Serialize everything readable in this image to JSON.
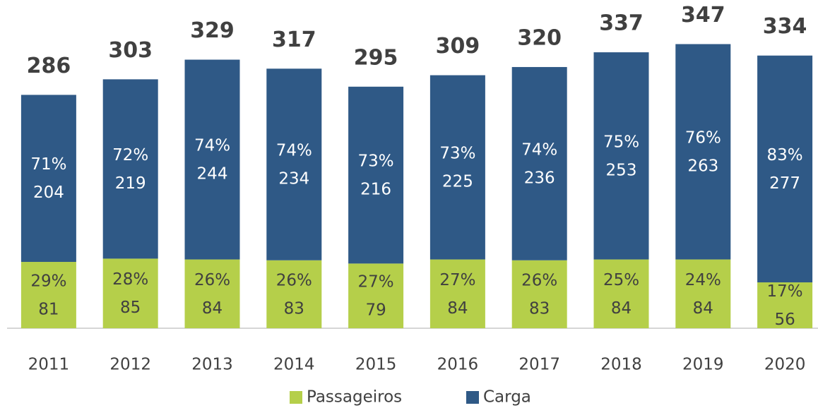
{
  "chart_data": {
    "type": "stacked_bar",
    "categories": [
      "2011",
      "2012",
      "2013",
      "2014",
      "2015",
      "2016",
      "2017",
      "2018",
      "2019",
      "2020"
    ],
    "series": [
      {
        "name": "Passageiros",
        "color": "#b5cf4a",
        "values": [
          81,
          85,
          84,
          83,
          79,
          84,
          83,
          84,
          84,
          56
        ],
        "percent_labels": [
          "29%",
          "28%",
          "26%",
          "26%",
          "27%",
          "27%",
          "26%",
          "25%",
          "24%",
          "17%"
        ]
      },
      {
        "name": "Carga",
        "color": "#2f5986",
        "values": [
          204,
          219,
          244,
          234,
          216,
          225,
          236,
          253,
          263,
          277
        ],
        "percent_labels": [
          "71%",
          "72%",
          "74%",
          "74%",
          "73%",
          "73%",
          "74%",
          "75%",
          "76%",
          "83%"
        ]
      }
    ],
    "totals": [
      286,
      303,
      329,
      317,
      295,
      309,
      320,
      337,
      347,
      334
    ],
    "ylim": [
      0,
      400
    ],
    "legend": "bottom"
  }
}
